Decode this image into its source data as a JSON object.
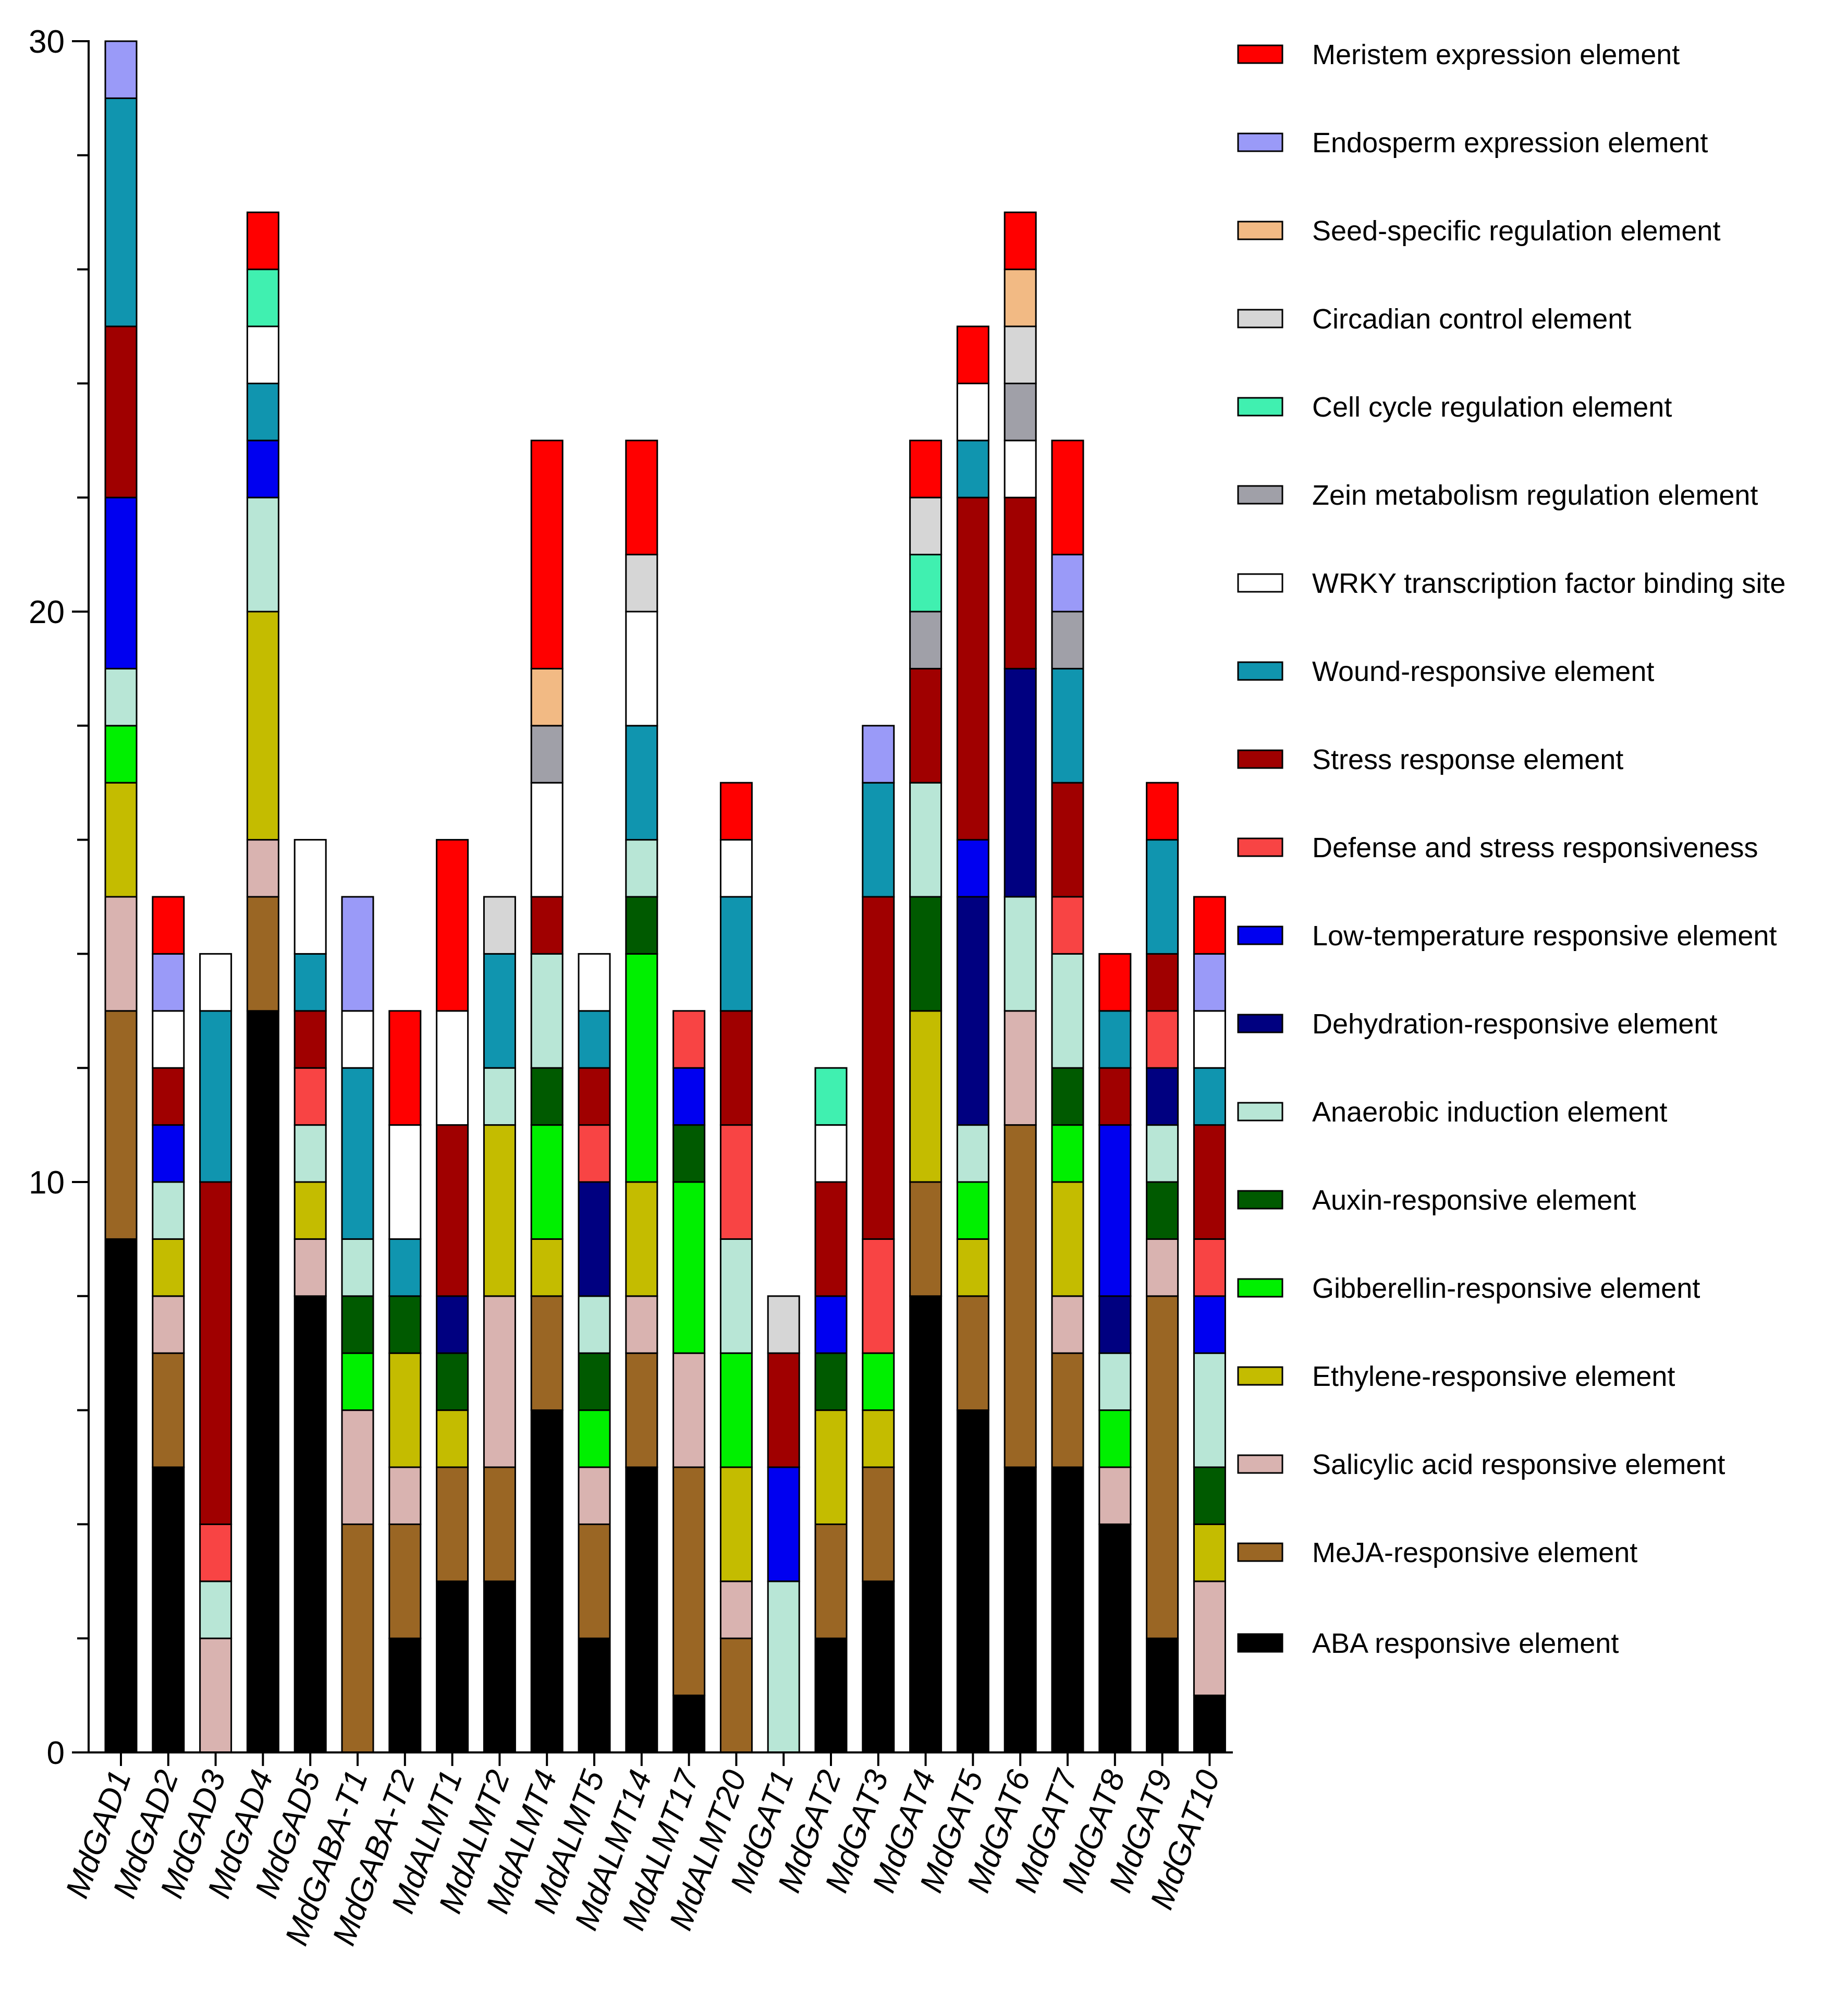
{
  "chart_data": {
    "type": "bar",
    "stacked": true,
    "title": "",
    "xlabel": "",
    "ylabel": "",
    "ylim": [
      0,
      30
    ],
    "yticks": [
      0,
      10,
      20,
      30
    ],
    "legend_position": "right",
    "categories": [
      "MdGAD1",
      "MdGAD2",
      "MdGAD3",
      "MdGAD4",
      "MdGAD5",
      "MdGABA-T1",
      "MdGABA-T2",
      "MdALMT1",
      "MdALMT2",
      "MdALMT4",
      "MdALMT5",
      "MdALMT14",
      "MdALMT17",
      "MdALMT20",
      "MdGAT1",
      "MdGAT2",
      "MdGAT3",
      "MdGAT4",
      "MdGAT5",
      "MdGAT6",
      "MdGAT7",
      "MdGAT8",
      "MdGAT9",
      "MdGAT10"
    ],
    "series": [
      {
        "name": "ABA responsive element",
        "color": "#000000",
        "values": [
          9,
          5,
          0,
          13,
          8,
          0,
          2,
          3,
          3,
          6,
          2,
          5,
          1,
          0,
          0,
          2,
          3,
          8,
          6,
          5,
          5,
          4,
          2,
          1
        ]
      },
      {
        "name": "MeJA-responsive element",
        "color": "#9A6624",
        "values": [
          4,
          2,
          0,
          2,
          0,
          4,
          2,
          2,
          2,
          2,
          2,
          2,
          4,
          2,
          0,
          2,
          2,
          2,
          2,
          6,
          2,
          0,
          6,
          0
        ]
      },
      {
        "name": "Salicylic acid responsive element",
        "color": "#D9B3B0",
        "values": [
          2,
          1,
          2,
          1,
          1,
          2,
          1,
          0,
          3,
          0,
          1,
          1,
          2,
          1,
          0,
          0,
          0,
          0,
          0,
          2,
          1,
          1,
          1,
          2
        ]
      },
      {
        "name": "Ethylene-responsive element",
        "color": "#C4BC00",
        "values": [
          2,
          1,
          0,
          4,
          1,
          0,
          2,
          1,
          3,
          1,
          0,
          2,
          0,
          2,
          0,
          2,
          1,
          3,
          1,
          0,
          2,
          0,
          0,
          1
        ]
      },
      {
        "name": "Gibberellin-responsive element",
        "color": "#00F000",
        "values": [
          1,
          0,
          0,
          0,
          0,
          1,
          0,
          0,
          0,
          2,
          1,
          4,
          3,
          2,
          0,
          0,
          1,
          0,
          1,
          0,
          1,
          1,
          0,
          0
        ]
      },
      {
        "name": "Auxin-responsive element",
        "color": "#005A00",
        "values": [
          0,
          0,
          0,
          0,
          0,
          1,
          1,
          1,
          0,
          1,
          1,
          1,
          1,
          0,
          0,
          1,
          0,
          2,
          0,
          0,
          1,
          0,
          1,
          1
        ]
      },
      {
        "name": "Anaerobic induction element",
        "color": "#B8E6D6",
        "values": [
          1,
          1,
          1,
          2,
          1,
          1,
          0,
          0,
          1,
          2,
          1,
          1,
          0,
          2,
          3,
          0,
          0,
          2,
          1,
          2,
          2,
          1,
          1,
          2
        ]
      },
      {
        "name": "Dehydration-responsive element",
        "color": "#000080",
        "values": [
          0,
          0,
          0,
          0,
          0,
          0,
          0,
          1,
          0,
          0,
          2,
          0,
          0,
          0,
          0,
          0,
          0,
          0,
          4,
          4,
          0,
          1,
          1,
          0
        ]
      },
      {
        "name": "Low-temperature responsive element",
        "color": "#0000F0",
        "values": [
          3,
          1,
          0,
          1,
          0,
          0,
          0,
          0,
          0,
          0,
          0,
          0,
          1,
          0,
          2,
          1,
          0,
          0,
          1,
          0,
          0,
          3,
          0,
          1
        ]
      },
      {
        "name": "Defense and stress responsiveness",
        "color": "#F84444",
        "values": [
          0,
          0,
          1,
          0,
          1,
          0,
          0,
          0,
          0,
          0,
          1,
          0,
          1,
          2,
          0,
          0,
          2,
          0,
          0,
          0,
          1,
          0,
          1,
          1
        ]
      },
      {
        "name": "Stress response element",
        "color": "#A00000",
        "values": [
          3,
          1,
          6,
          0,
          1,
          0,
          0,
          3,
          0,
          1,
          1,
          0,
          0,
          2,
          2,
          2,
          6,
          2,
          6,
          3,
          2,
          1,
          1,
          2
        ]
      },
      {
        "name": "Wound-responsive element",
        "color": "#1095AF",
        "values": [
          4,
          0,
          3,
          1,
          1,
          3,
          1,
          0,
          2,
          0,
          1,
          2,
          0,
          2,
          0,
          0,
          2,
          0,
          1,
          0,
          2,
          1,
          2,
          1
        ]
      },
      {
        "name": "WRKY transcription factor binding site",
        "color": "#FFFFFF",
        "values": [
          0,
          1,
          1,
          1,
          2,
          1,
          2,
          2,
          0,
          2,
          1,
          2,
          0,
          1,
          0,
          1,
          0,
          0,
          1,
          1,
          0,
          0,
          0,
          1
        ]
      },
      {
        "name": "Zein metabolism regulation element",
        "color": "#A0A0A8",
        "values": [
          0,
          0,
          0,
          0,
          0,
          0,
          0,
          0,
          0,
          1,
          0,
          0,
          0,
          0,
          0,
          0,
          0,
          1,
          0,
          1,
          1,
          0,
          0,
          0
        ]
      },
      {
        "name": "Cell cycle regulation element",
        "color": "#40F0B0",
        "values": [
          0,
          0,
          0,
          1,
          0,
          0,
          0,
          0,
          0,
          0,
          0,
          0,
          0,
          0,
          0,
          1,
          0,
          1,
          0,
          0,
          0,
          0,
          0,
          0
        ]
      },
      {
        "name": "Circadian control element",
        "color": "#D6D6D6",
        "values": [
          0,
          0,
          0,
          0,
          0,
          0,
          0,
          0,
          1,
          0,
          0,
          1,
          0,
          0,
          1,
          0,
          0,
          1,
          0,
          1,
          0,
          0,
          0,
          0
        ]
      },
      {
        "name": "Seed-specific regulation element",
        "color": "#F2BA84",
        "values": [
          0,
          0,
          0,
          0,
          0,
          0,
          0,
          0,
          0,
          1,
          0,
          0,
          0,
          0,
          0,
          0,
          0,
          0,
          0,
          1,
          0,
          0,
          0,
          0
        ]
      },
      {
        "name": "Endosperm expression element",
        "color": "#9A9AF8",
        "values": [
          1,
          1,
          0,
          0,
          0,
          2,
          0,
          0,
          0,
          0,
          0,
          0,
          0,
          0,
          0,
          0,
          1,
          0,
          0,
          0,
          1,
          0,
          0,
          1
        ]
      },
      {
        "name": "Meristem expression element",
        "color": "#FF0000",
        "values": [
          0,
          1,
          0,
          1,
          0,
          0,
          2,
          3,
          0,
          4,
          0,
          2,
          0,
          1,
          0,
          0,
          0,
          1,
          1,
          1,
          2,
          1,
          1,
          1
        ]
      }
    ]
  }
}
